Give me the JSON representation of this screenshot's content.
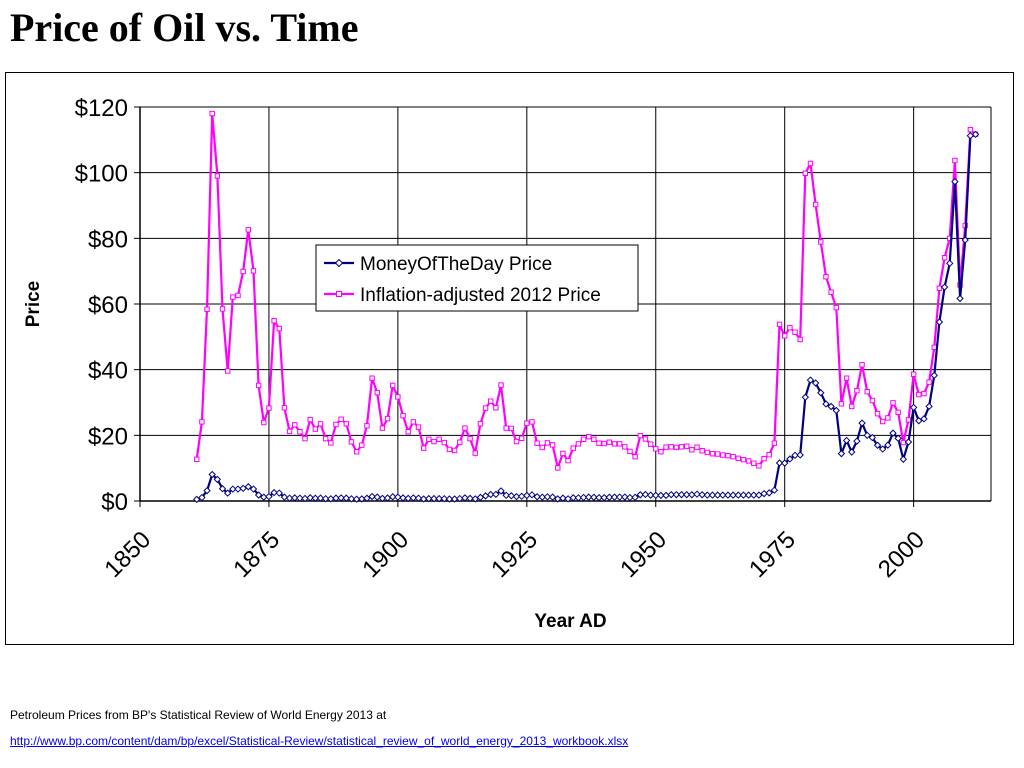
{
  "slide": {
    "title": "Price of Oil vs. Time",
    "source_note": "Petroleum Prices from BP's Statistical Review of World Energy 2013 at",
    "source_link": "http://www.bp.com/content/dam/bp/excel/Statistical-Review/statistical_review_of_world_energy_2013_workbook.xlsx"
  },
  "colors": {
    "nominal": "#000080",
    "real": "#ff00ff",
    "grid": "#000000"
  },
  "chart_data": {
    "type": "line",
    "title": "",
    "xlabel": "Year AD",
    "ylabel": "Price",
    "xlim": [
      1850,
      2015
    ],
    "ylim": [
      0,
      120
    ],
    "x_ticks": [
      1850,
      1875,
      1900,
      1925,
      1950,
      1975,
      2000
    ],
    "x_tick_labels": [
      "1850",
      "1875",
      "1900",
      "1925",
      "1950",
      "1975",
      "2000"
    ],
    "y_ticks": [
      0,
      20,
      40,
      60,
      80,
      100,
      120
    ],
    "y_tick_labels": [
      "$0",
      "$20",
      "$40",
      "$60",
      "$80",
      "$100",
      "$120"
    ],
    "grid": true,
    "legend_placement": "center",
    "x": [
      1861,
      1862,
      1863,
      1864,
      1865,
      1866,
      1867,
      1868,
      1869,
      1870,
      1871,
      1872,
      1873,
      1874,
      1875,
      1876,
      1877,
      1878,
      1879,
      1880,
      1881,
      1882,
      1883,
      1884,
      1885,
      1886,
      1887,
      1888,
      1889,
      1890,
      1891,
      1892,
      1893,
      1894,
      1895,
      1896,
      1897,
      1898,
      1899,
      1900,
      1901,
      1902,
      1903,
      1904,
      1905,
      1906,
      1907,
      1908,
      1909,
      1910,
      1911,
      1912,
      1913,
      1914,
      1915,
      1916,
      1917,
      1918,
      1919,
      1920,
      1921,
      1922,
      1923,
      1924,
      1925,
      1926,
      1927,
      1928,
      1929,
      1930,
      1931,
      1932,
      1933,
      1934,
      1935,
      1936,
      1937,
      1938,
      1939,
      1940,
      1941,
      1942,
      1943,
      1944,
      1945,
      1946,
      1947,
      1948,
      1949,
      1950,
      1951,
      1952,
      1953,
      1954,
      1955,
      1956,
      1957,
      1958,
      1959,
      1960,
      1961,
      1962,
      1963,
      1964,
      1965,
      1966,
      1967,
      1968,
      1969,
      1970,
      1971,
      1972,
      1973,
      1974,
      1975,
      1976,
      1977,
      1978,
      1979,
      1980,
      1981,
      1982,
      1983,
      1984,
      1985,
      1986,
      1987,
      1988,
      1989,
      1990,
      1991,
      1992,
      1993,
      1994,
      1995,
      1996,
      1997,
      1998,
      1999,
      2000,
      2001,
      2002,
      2003,
      2004,
      2005,
      2006,
      2007,
      2008,
      2009,
      2010,
      2011,
      2012
    ],
    "series": [
      {
        "name": "MoneyOfTheDay Price",
        "values": [
          0.49,
          1.05,
          3.15,
          8.06,
          6.59,
          3.74,
          2.41,
          3.63,
          3.64,
          3.86,
          4.34,
          3.64,
          1.83,
          1.17,
          1.35,
          2.56,
          2.42,
          1.19,
          0.86,
          0.95,
          0.86,
          0.78,
          1.0,
          0.84,
          0.88,
          0.71,
          0.67,
          0.88,
          0.94,
          0.87,
          0.67,
          0.56,
          0.64,
          0.84,
          1.36,
          1.18,
          0.79,
          0.91,
          1.29,
          1.19,
          0.96,
          0.8,
          0.94,
          0.86,
          0.62,
          0.73,
          0.72,
          0.72,
          0.7,
          0.61,
          0.61,
          0.74,
          0.95,
          0.81,
          0.64,
          1.1,
          1.56,
          1.98,
          2.01,
          3.07,
          1.73,
          1.61,
          1.34,
          1.43,
          1.68,
          1.88,
          1.3,
          1.17,
          1.27,
          1.19,
          0.65,
          0.87,
          0.67,
          1.0,
          0.97,
          1.09,
          1.18,
          1.13,
          1.02,
          1.02,
          1.14,
          1.19,
          1.2,
          1.21,
          1.05,
          1.12,
          1.9,
          1.99,
          1.78,
          1.71,
          1.71,
          1.71,
          1.93,
          1.93,
          1.93,
          1.93,
          1.9,
          2.08,
          1.9,
          1.8,
          1.8,
          1.8,
          1.8,
          1.8,
          1.8,
          1.8,
          1.8,
          1.8,
          1.8,
          1.8,
          2.24,
          2.48,
          3.29,
          11.58,
          11.53,
          12.8,
          13.92,
          14.02,
          31.61,
          36.83,
          35.93,
          32.97,
          29.55,
          28.78,
          27.56,
          14.43,
          18.44,
          14.92,
          18.23,
          23.73,
          20.0,
          19.32,
          16.97,
          15.82,
          17.02,
          20.67,
          19.09,
          12.72,
          17.97,
          28.5,
          24.44,
          25.02,
          28.83,
          38.27,
          54.52,
          65.14,
          72.39,
          97.26,
          61.67,
          79.5,
          111.26,
          111.67
        ]
      },
      {
        "name": "Inflation-adjusted 2012 Price",
        "values": [
          12.7,
          24.1,
          58.4,
          118.0,
          99.0,
          58.5,
          39.6,
          62.1,
          62.6,
          69.9,
          82.6,
          70.1,
          35.2,
          23.9,
          28.3,
          54.9,
          52.5,
          28.4,
          21.2,
          23.2,
          21.1,
          19.0,
          24.8,
          21.9,
          23.5,
          19.0,
          17.7,
          23.3,
          24.9,
          23.5,
          18.0,
          15.0,
          17.0,
          22.9,
          37.4,
          33.0,
          22.2,
          25.1,
          35.2,
          31.7,
          26.0,
          21.1,
          24.1,
          22.5,
          16.1,
          18.8,
          18.1,
          18.8,
          17.8,
          15.7,
          15.4,
          17.9,
          22.2,
          19.0,
          14.6,
          23.5,
          28.3,
          30.4,
          28.4,
          35.3,
          22.2,
          22.1,
          18.1,
          19.1,
          23.7,
          24.1,
          17.6,
          16.3,
          17.7,
          17.1,
          10.1,
          14.5,
          12.3,
          16.1,
          17.4,
          18.8,
          19.6,
          18.8,
          17.6,
          17.5,
          17.9,
          17.4,
          17.4,
          16.5,
          15.1,
          13.5,
          19.9,
          18.9,
          17.3,
          15.9,
          15.0,
          16.4,
          16.5,
          16.3,
          16.5,
          16.7,
          15.6,
          16.4,
          15.3,
          14.8,
          14.4,
          14.3,
          14.0,
          13.8,
          13.5,
          13.0,
          12.6,
          12.2,
          11.5,
          10.7,
          12.9,
          14.1,
          17.6,
          53.8,
          50.3,
          52.8,
          51.4,
          49.2,
          99.8,
          102.8,
          90.3,
          78.9,
          68.3,
          63.6,
          58.9,
          29.6,
          37.4,
          28.8,
          33.6,
          41.5,
          33.3,
          30.6,
          26.6,
          24.2,
          25.3,
          29.9,
          27.0,
          17.8,
          24.7,
          38.6,
          32.4,
          32.7,
          36.2,
          46.8,
          64.8,
          74.1,
          80.0,
          103.7,
          65.8,
          83.9,
          113.1,
          111.7
        ]
      }
    ]
  }
}
